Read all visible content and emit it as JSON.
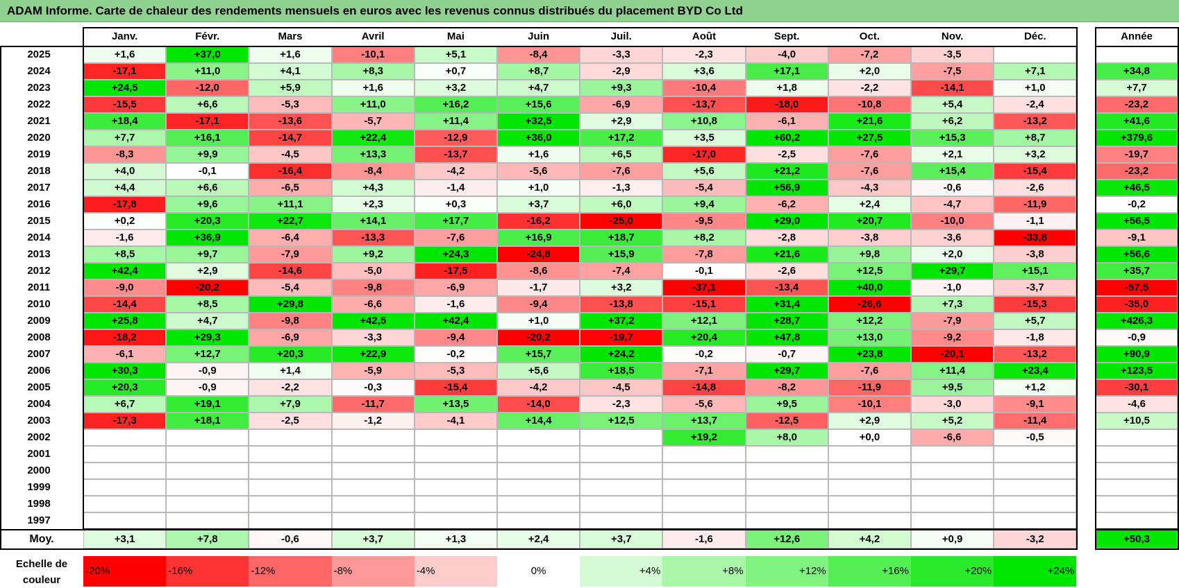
{
  "title": "ADAM Informe. Carte de chaleur des rendements mensuels en euros avec les revenus connus distribués du placement BYD Co Ltd",
  "chart_data": {
    "type": "heatmap",
    "columns": [
      "Janv.",
      "Févr.",
      "Mars",
      "Avril",
      "Mai",
      "Juin",
      "Juil.",
      "Août",
      "Sept.",
      "Oct.",
      "Nov.",
      "Déc."
    ],
    "year_header": "Année",
    "rows": [
      {
        "year": "2025",
        "values": [
          "+1,6",
          "+37,0",
          "+1,6",
          "-10,1",
          "+5,1",
          "-8,4",
          "-3,3",
          "-2,3",
          "-4,0",
          "-7,2",
          "-3,5",
          ""
        ],
        "annual": ""
      },
      {
        "year": "2024",
        "values": [
          "-17,1",
          "+11,0",
          "+4,1",
          "+8,3",
          "+0,7",
          "+8,7",
          "-2,9",
          "+3,6",
          "+17,1",
          "+2,0",
          "-7,5",
          "+7,1"
        ],
        "annual": "+34,8"
      },
      {
        "year": "2023",
        "values": [
          "+24,5",
          "-12,0",
          "+5,9",
          "+1,6",
          "+3,2",
          "+4,7",
          "+9,3",
          "-10,4",
          "+1,8",
          "-2,2",
          "-14,1",
          "+1,0"
        ],
        "annual": "+7,7"
      },
      {
        "year": "2022",
        "values": [
          "-15,5",
          "+6,6",
          "-5,3",
          "+11,0",
          "+16,2",
          "+15,6",
          "-6,9",
          "-13,7",
          "-18,0",
          "-10,8",
          "+5,4",
          "-2,4"
        ],
        "annual": "-23,2"
      },
      {
        "year": "2021",
        "values": [
          "+18,4",
          "-17,1",
          "-13,6",
          "-5,7",
          "+11,4",
          "+32,5",
          "+2,9",
          "+10,8",
          "-6,1",
          "+21,6",
          "+6,2",
          "-13,2"
        ],
        "annual": "+41,6"
      },
      {
        "year": "2020",
        "values": [
          "+7,7",
          "+16,1",
          "-14,7",
          "+22,4",
          "-12,9",
          "+36,0",
          "+17,2",
          "+3,5",
          "+60,2",
          "+27,5",
          "+15,3",
          "+8,7"
        ],
        "annual": "+379,6"
      },
      {
        "year": "2019",
        "values": [
          "-8,3",
          "+9,9",
          "-4,5",
          "+13,3",
          "-13,7",
          "+1,6",
          "+6,5",
          "-17,0",
          "-2,5",
          "-7,6",
          "+2,1",
          "+3,2"
        ],
        "annual": "-19,7"
      },
      {
        "year": "2018",
        "values": [
          "+4,0",
          "-0,1",
          "-16,4",
          "-8,4",
          "-4,2",
          "-5,6",
          "-7,6",
          "+5,6",
          "+21,2",
          "-7,6",
          "+15,4",
          "-15,4"
        ],
        "annual": "-23,2"
      },
      {
        "year": "2017",
        "values": [
          "+4,4",
          "+6,6",
          "-6,5",
          "+4,3",
          "-1,4",
          "+1,0",
          "-1,3",
          "-5,4",
          "+56,9",
          "-4,3",
          "-0,6",
          "-2,6"
        ],
        "annual": "+46,5"
      },
      {
        "year": "2016",
        "values": [
          "-17,8",
          "+9,6",
          "+11,1",
          "+2,3",
          "+0,3",
          "+3,7",
          "+6,0",
          "+9,4",
          "-6,2",
          "+2,4",
          "-4,7",
          "-11,9"
        ],
        "annual": "-0,2"
      },
      {
        "year": "2015",
        "values": [
          "+0,2",
          "+20,3",
          "+22,7",
          "+14,1",
          "+17,7",
          "-16,2",
          "-25,0",
          "-9,5",
          "+29,0",
          "+20,7",
          "-10,0",
          "-1,1"
        ],
        "annual": "+56,5"
      },
      {
        "year": "2014",
        "values": [
          "-1,6",
          "+36,9",
          "-6,4",
          "-13,3",
          "-7,6",
          "+16,9",
          "+18,7",
          "+8,2",
          "-2,8",
          "-3,8",
          "-3,6",
          "-33,8"
        ],
        "annual": "-9,1"
      },
      {
        "year": "2013",
        "values": [
          "+8,5",
          "+9,7",
          "-7,9",
          "+9,2",
          "+24,3",
          "-24,8",
          "+15,9",
          "-7,8",
          "+21,6",
          "+9,8",
          "+2,0",
          "-3,8"
        ],
        "annual": "+56,6"
      },
      {
        "year": "2012",
        "values": [
          "+42,4",
          "+2,9",
          "-14,6",
          "-5,0",
          "-17,5",
          "-8,6",
          "-7,4",
          "-0,1",
          "-2,6",
          "+12,5",
          "+29,7",
          "+15,1"
        ],
        "annual": "+35,7"
      },
      {
        "year": "2011",
        "values": [
          "-9,0",
          "-20,2",
          "-5,4",
          "-9,8",
          "-6,9",
          "-1,7",
          "+3,2",
          "-37,1",
          "-13,4",
          "+40,0",
          "-1,0",
          "-3,7"
        ],
        "annual": "-57,5"
      },
      {
        "year": "2010",
        "values": [
          "-14,4",
          "+8,5",
          "+29,8",
          "-6,6",
          "-1,6",
          "-9,4",
          "-13,8",
          "-15,1",
          "+31,4",
          "-26,6",
          "+7,3",
          "-15,3"
        ],
        "annual": "-35,0"
      },
      {
        "year": "2009",
        "values": [
          "+25,8",
          "+4,7",
          "-9,8",
          "+42,5",
          "+42,4",
          "+1,0",
          "+37,2",
          "+12,1",
          "+28,7",
          "+12,2",
          "-7,9",
          "+5,7"
        ],
        "annual": "+426,3"
      },
      {
        "year": "2008",
        "values": [
          "-18,2",
          "+29,3",
          "-6,9",
          "-3,3",
          "-9,4",
          "-20,2",
          "-19,7",
          "+20,4",
          "+47,8",
          "+13,0",
          "-9,2",
          "-1,8"
        ],
        "annual": "-0,9"
      },
      {
        "year": "2007",
        "values": [
          "-6,1",
          "+12,7",
          "+20,3",
          "+22,9",
          "-0,2",
          "+15,7",
          "+24,2",
          "-0,2",
          "-0,7",
          "+23,8",
          "-20,1",
          "-13,2"
        ],
        "annual": "+90,9"
      },
      {
        "year": "2006",
        "values": [
          "+30,3",
          "-0,9",
          "+1,4",
          "-5,9",
          "-5,3",
          "+5,6",
          "+18,5",
          "-7,1",
          "+29,7",
          "-7,6",
          "+11,4",
          "+23,4"
        ],
        "annual": "+123,5"
      },
      {
        "year": "2005",
        "values": [
          "+20,3",
          "-0,9",
          "-2,2",
          "-0,3",
          "-15,4",
          "-4,2",
          "-4,5",
          "-14,8",
          "-8,2",
          "-11,9",
          "+9,5",
          "+1,2"
        ],
        "annual": "-30,1"
      },
      {
        "year": "2004",
        "values": [
          "+6,7",
          "+19,1",
          "+7,9",
          "-11,7",
          "+13,5",
          "-14,0",
          "-2,3",
          "-5,6",
          "+9,5",
          "-10,1",
          "-3,0",
          "-9,1"
        ],
        "annual": "-4,6"
      },
      {
        "year": "2003",
        "values": [
          "-17,3",
          "+18,1",
          "-2,5",
          "-1,2",
          "-4,1",
          "+14,4",
          "+12,5",
          "+13,7",
          "-12,5",
          "+2,9",
          "+5,2",
          "-11,4"
        ],
        "annual": "+10,5"
      },
      {
        "year": "2002",
        "values": [
          "",
          "",
          "",
          "",
          "",
          "",
          "",
          "+19,2",
          "+8,0",
          "+0,0",
          "-6,6",
          "-0,5"
        ],
        "annual": ""
      },
      {
        "year": "2001",
        "values": [
          "",
          "",
          "",
          "",
          "",
          "",
          "",
          "",
          "",
          "",
          "",
          ""
        ],
        "annual": ""
      },
      {
        "year": "2000",
        "values": [
          "",
          "",
          "",
          "",
          "",
          "",
          "",
          "",
          "",
          "",
          "",
          ""
        ],
        "annual": ""
      },
      {
        "year": "1999",
        "values": [
          "",
          "",
          "",
          "",
          "",
          "",
          "",
          "",
          "",
          "",
          "",
          ""
        ],
        "annual": ""
      },
      {
        "year": "1998",
        "values": [
          "",
          "",
          "",
          "",
          "",
          "",
          "",
          "",
          "",
          "",
          "",
          ""
        ],
        "annual": ""
      },
      {
        "year": "1997",
        "values": [
          "",
          "",
          "",
          "",
          "",
          "",
          "",
          "",
          "",
          "",
          "",
          ""
        ],
        "annual": ""
      }
    ],
    "average": {
      "label": "Moy.",
      "values": [
        "+3,1",
        "+7,8",
        "-0,6",
        "+3,7",
        "+1,3",
        "+2,4",
        "+3,7",
        "-1,6",
        "+12,6",
        "+4,2",
        "+0,9",
        "-3,2"
      ],
      "annual": "+50,3"
    },
    "color_scale": {
      "label": "Echelle de couleur",
      "steps": [
        {
          "label": "-20%",
          "value": -20
        },
        {
          "label": "-16%",
          "value": -16
        },
        {
          "label": "-12%",
          "value": -12
        },
        {
          "label": "-8%",
          "value": -8
        },
        {
          "label": "-4%",
          "value": -4
        },
        {
          "label": "0%",
          "value": 0
        },
        {
          "label": "+4%",
          "value": 4
        },
        {
          "label": "+8%",
          "value": 8
        },
        {
          "label": "+12%",
          "value": 12
        },
        {
          "label": "+16%",
          "value": 16
        },
        {
          "label": "+20%",
          "value": 20
        },
        {
          "label": "+24%",
          "value": 24
        }
      ]
    },
    "colors": {
      "negative": "#ff0000",
      "neutral": "#ffffff",
      "positive": "#00e600",
      "title_bg": "#8fd18f"
    }
  }
}
